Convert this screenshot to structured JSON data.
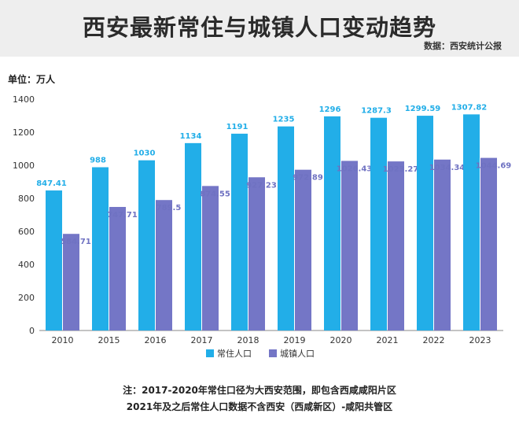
{
  "header": {
    "title": "西安最新常住与城镇人口变动趋势",
    "source": "数据：西安统计公报"
  },
  "unit_label": "单位：万人",
  "notes": [
    "注：2017-2020年常住口径为大西安范围，即包含西咸咸阳片区",
    "2021年及之后常住人口数据不含西安（西咸新区）-咸阳共管区"
  ],
  "colors": {
    "resident": "#22aee8",
    "urban": "#7476c6",
    "resident_label": "#22aee8",
    "urban_label": "#6f72c2"
  },
  "chart_data": {
    "type": "bar",
    "title": "西安最新常住与城镇人口变动趋势",
    "ylabel": "单位：万人",
    "ylim": [
      0,
      1400
    ],
    "yticks": [
      0,
      200,
      400,
      600,
      800,
      1000,
      1200,
      1400
    ],
    "grid": false,
    "legend_position": "bottom-center",
    "categories": [
      "2010",
      "2015",
      "2016",
      "2017",
      "2018",
      "2019",
      "2020",
      "2021",
      "2022",
      "2023"
    ],
    "series": [
      {
        "name": "常住人口",
        "values": [
          847.41,
          988,
          1030,
          1134,
          1191,
          1235,
          1296,
          1287.3,
          1299.59,
          1307.82
        ]
      },
      {
        "name": "城镇人口",
        "values": [
          584.71,
          747.71,
          789.5,
          874.55,
          927.23,
          972.89,
          1026.43,
          1023.27,
          1034.34,
          1044.69
        ]
      }
    ]
  }
}
